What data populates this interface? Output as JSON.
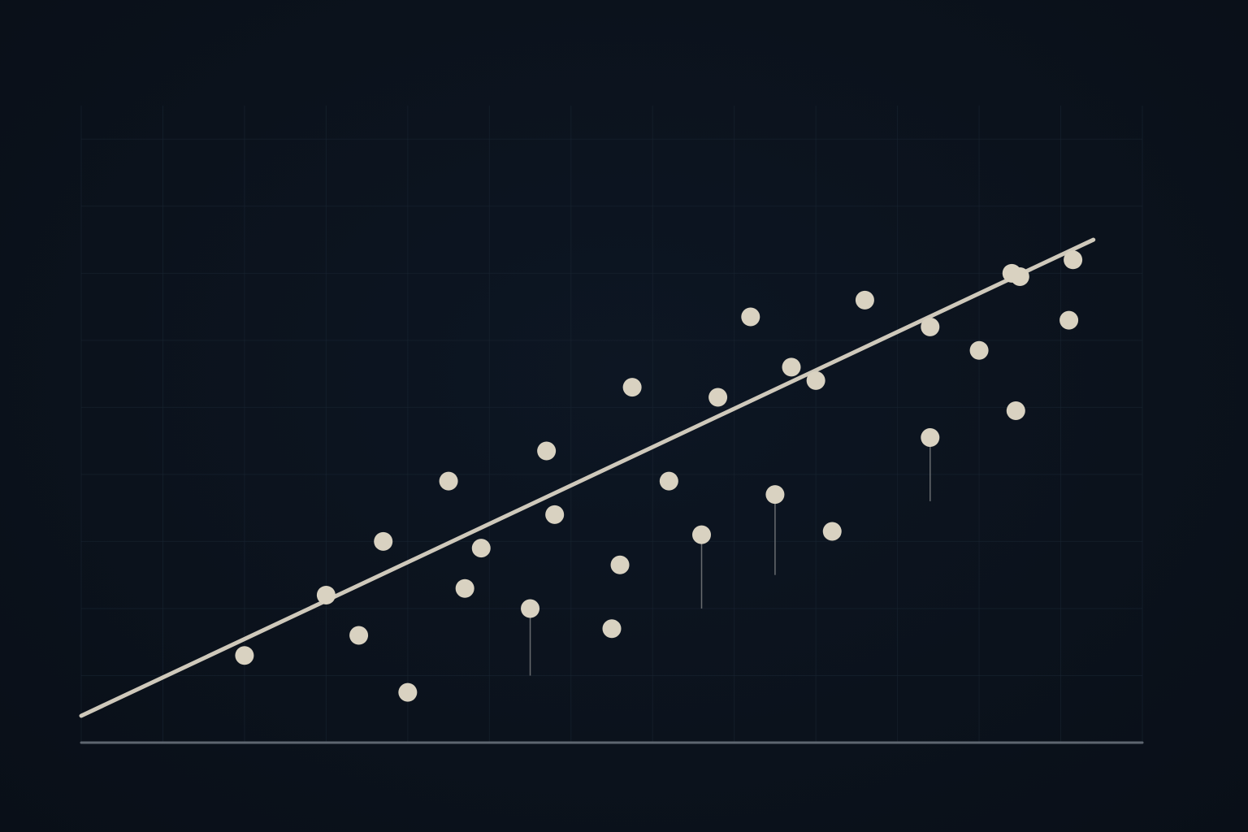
{
  "chart_data": {
    "type": "scatter",
    "title": "",
    "xlabel": "",
    "ylabel": "",
    "xlim": [
      0,
      13
    ],
    "ylim": [
      0,
      9.5
    ],
    "grid": true,
    "legend": "none",
    "colors": {
      "background": "#0b121c",
      "grid": "#1a2633",
      "baseline": "#5e6670",
      "points": "#d9d2c1",
      "trendline": "#cfc9bb",
      "residual": "#7f8284"
    },
    "series": [
      {
        "x": [
          2.0,
          3.0,
          3.4,
          3.7,
          4.0,
          4.5,
          4.7,
          4.9,
          5.5,
          5.7,
          5.8,
          6.5,
          6.6,
          6.75,
          7.2,
          7.6,
          7.8,
          8.2,
          8.5,
          8.7,
          9.0,
          9.2,
          9.6,
          10.4,
          10.4,
          11.0,
          11.4,
          11.45,
          11.5,
          12.1,
          12.15
        ],
        "y": [
          1.3,
          2.2,
          1.6,
          3.0,
          0.75,
          3.9,
          2.3,
          2.9,
          2.0,
          4.35,
          3.4,
          1.7,
          2.65,
          5.3,
          3.9,
          3.1,
          5.15,
          6.35,
          3.7,
          5.6,
          5.4,
          3.15,
          6.6,
          4.55,
          6.2,
          5.85,
          7.0,
          4.95,
          6.95,
          6.3,
          7.2
        ]
      }
    ],
    "trendline": {
      "x": [
        0.0,
        12.4
      ],
      "y": [
        0.4,
        7.5
      ]
    },
    "residuals": [
      {
        "x": 5.5,
        "y_from": 2.0,
        "y_to": 1.0
      },
      {
        "x": 7.6,
        "y_from": 3.1,
        "y_to": 2.0
      },
      {
        "x": 8.5,
        "y_from": 3.7,
        "y_to": 2.5
      },
      {
        "x": 10.4,
        "y_from": 4.55,
        "y_to": 3.6
      }
    ]
  }
}
